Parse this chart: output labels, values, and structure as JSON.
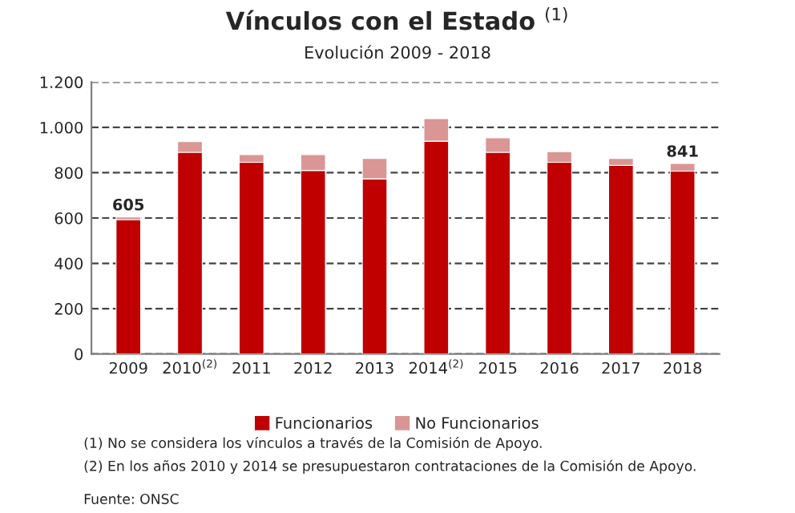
{
  "chart_data": {
    "type": "bar",
    "title": "Vínculos con el Estado $^{(1)}$",
    "subtitle": "Evolución 2009 - 2018",
    "categories": [
      "2009",
      "2010$^{(2)}$",
      "2011",
      "2012",
      "2013",
      "2014$^{(2)}$",
      "2015",
      "2016",
      "2017",
      "2018"
    ],
    "stacked": true,
    "series": [
      {
        "name": "Funcionarios",
        "color": "#c00000",
        "values": [
          593,
          890,
          846,
          810,
          773,
          939,
          890,
          846,
          832,
          807
        ]
      },
      {
        "name": "No Funcionarios",
        "color": "#d99694",
        "values": [
          12,
          47,
          34,
          70,
          90,
          100,
          64,
          47,
          31,
          34
        ]
      }
    ],
    "totals": [
      "605",
      null,
      null,
      null,
      null,
      null,
      null,
      null,
      null,
      "841"
    ],
    "ylim": [
      0,
      1200
    ],
    "yticks": [
      0,
      200,
      400,
      600,
      800,
      {
        "value": 1000,
        "label": "1.000"
      },
      {
        "value": 1200,
        "label": "1.200"
      }
    ],
    "grid": "y",
    "legend": "bottom",
    "annotations": [
      "(1) No se considera los vínculos a través de la Comisión de Apoyo.",
      "(2) En los años 2010 y 2014 se presupuestaron contrataciones de la Comisión de Apoyo.",
      "Fuente: ONSC"
    ]
  }
}
